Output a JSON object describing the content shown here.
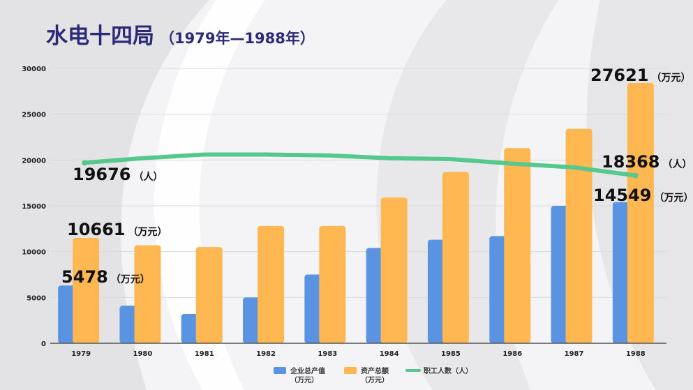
{
  "title": {
    "main": "水电十四局",
    "sub": "（1979年—1988年）"
  },
  "colors": {
    "title": "#2b2a78",
    "output": "#5b93e3",
    "assets": "#ffb751",
    "workers": "#55c98d"
  },
  "chart_data": {
    "type": "bar",
    "categories": [
      "1979",
      "1980",
      "1981",
      "1982",
      "1983",
      "1984",
      "1985",
      "1986",
      "1987",
      "1988"
    ],
    "ylim": [
      0,
      30000
    ],
    "yticks": [
      0,
      5000,
      10000,
      15000,
      20000,
      25000,
      30000
    ],
    "grid": true,
    "legend_position": "bottom",
    "series": [
      {
        "name": "企业总产值\n（万元）",
        "type": "bar",
        "values": [
          6300,
          4100,
          3200,
          5000,
          7500,
          10400,
          11300,
          11700,
          15000,
          15400
        ]
      },
      {
        "name": "资产总额\n（万元）",
        "type": "bar",
        "values": [
          11500,
          10700,
          10500,
          12800,
          12800,
          15900,
          18700,
          21300,
          23400,
          28400
        ]
      },
      {
        "name": "职工人数（人）",
        "type": "line",
        "values": [
          19700,
          20200,
          20600,
          20600,
          20500,
          20200,
          20100,
          19600,
          19200,
          18300
        ]
      }
    ],
    "annotations": [
      {
        "value": "5478",
        "unit": "（万元）"
      },
      {
        "value": "10661",
        "unit": "（万元）"
      },
      {
        "value": "19676",
        "unit": "（人）"
      },
      {
        "value": "27621",
        "unit": "（万元）"
      },
      {
        "value": "18368",
        "unit": "（人）"
      },
      {
        "value": "14549",
        "unit": "（万元）"
      }
    ]
  }
}
